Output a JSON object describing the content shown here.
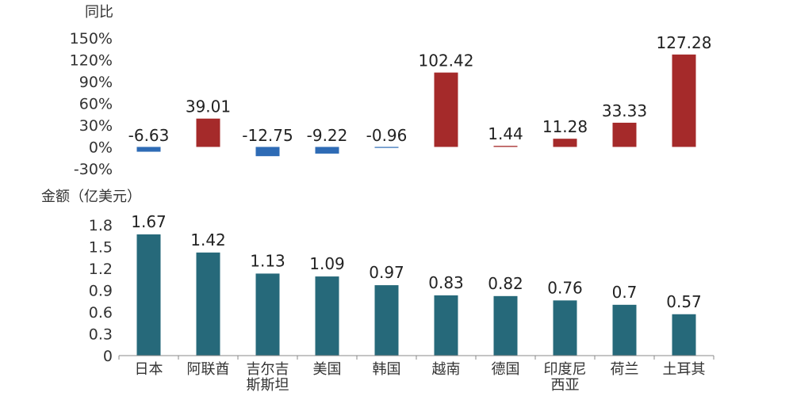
{
  "chart_data": [
    {
      "type": "bar",
      "ylabel": "同比",
      "categories": [
        "日本",
        "阿联酋",
        "吉尔吉斯斯坦",
        "美国",
        "韩国",
        "越南",
        "德国",
        "印度尼西亚",
        "荷兰",
        "土耳其"
      ],
      "values": [
        -6.63,
        39.01,
        -12.75,
        -9.22,
        -0.96,
        102.42,
        1.44,
        11.28,
        33.33,
        127.28
      ],
      "value_labels": [
        "-6.63",
        "39.01",
        "-12.75",
        "-9.22",
        "-0.96",
        "102.42",
        "1.44",
        "11.28",
        "33.33",
        "127.28"
      ],
      "ylim": [
        -30,
        150
      ],
      "yticks": [
        150,
        120,
        90,
        60,
        30,
        0,
        -30
      ],
      "ytick_labels": [
        "150%",
        "120%",
        "90%",
        "60%",
        "30%",
        "0%",
        "-30%"
      ],
      "colors": {
        "positive": "#a52a2a",
        "negative": "#2e6bb5"
      },
      "grid": false,
      "legend": "none"
    },
    {
      "type": "bar",
      "ylabel": "金额（亿美元）",
      "categories": [
        "日本",
        "阿联酋",
        "吉尔吉斯斯坦",
        "美国",
        "韩国",
        "越南",
        "德国",
        "印度尼西亚",
        "荷兰",
        "土耳其"
      ],
      "category_lines": [
        [
          "日本"
        ],
        [
          "阿联酋"
        ],
        [
          "吉尔吉",
          "斯斯坦"
        ],
        [
          "美国"
        ],
        [
          "韩国"
        ],
        [
          "越南"
        ],
        [
          "德国"
        ],
        [
          "印度尼",
          "西亚"
        ],
        [
          "荷兰"
        ],
        [
          "土耳其"
        ]
      ],
      "values": [
        1.67,
        1.42,
        1.13,
        1.09,
        0.97,
        0.83,
        0.82,
        0.76,
        0.7,
        0.57
      ],
      "value_labels": [
        "1.67",
        "1.42",
        "1.13",
        "1.09",
        "0.97",
        "0.83",
        "0.82",
        "0.76",
        "0.7",
        "0.57"
      ],
      "ylim": [
        0,
        1.8
      ],
      "yticks": [
        1.8,
        1.5,
        1.2,
        0.9,
        0.6,
        0.3,
        0
      ],
      "ytick_labels": [
        "1.8",
        "1.5",
        "1.2",
        "0.9",
        "0.6",
        "0.3",
        "0"
      ],
      "colors": {
        "bar": "#26697a"
      },
      "grid": false,
      "legend": "none"
    }
  ]
}
